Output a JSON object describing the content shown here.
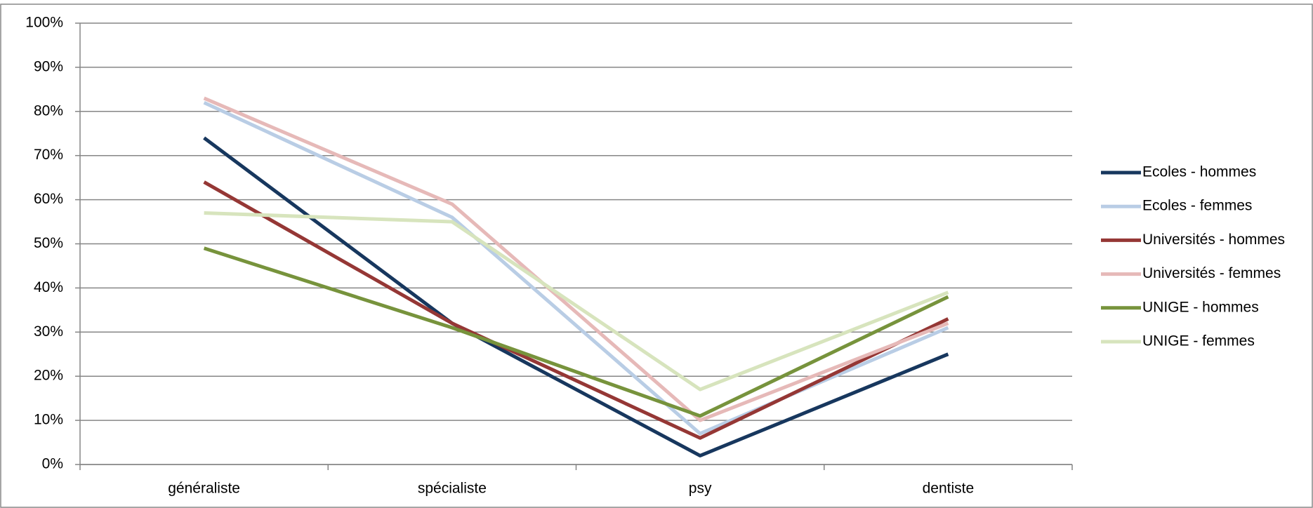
{
  "chart_data": {
    "type": "line",
    "categories": [
      "généraliste",
      "spécialiste",
      "psy",
      "dentiste"
    ],
    "series": [
      {
        "name": "Ecoles - hommes",
        "color": "#17375e",
        "values": [
          74,
          32,
          2,
          25
        ]
      },
      {
        "name": "Ecoles - femmes",
        "color": "#b9cde5",
        "values": [
          82,
          56,
          7,
          31
        ]
      },
      {
        "name": "Universités - hommes",
        "color": "#953735",
        "values": [
          64,
          32,
          6,
          33
        ]
      },
      {
        "name": "Universités - femmes",
        "color": "#e6b9b8",
        "values": [
          83,
          59,
          10,
          32
        ]
      },
      {
        "name": "UNIGE - hommes",
        "color": "#77933c",
        "values": [
          49,
          31,
          11,
          38
        ]
      },
      {
        "name": "UNIGE - femmes",
        "color": "#d7e4bd",
        "values": [
          57,
          55,
          17,
          39
        ]
      }
    ],
    "ylim": [
      0,
      100
    ],
    "yticks": [
      {
        "value": 0,
        "label": "0%"
      },
      {
        "value": 10,
        "label": "10%"
      },
      {
        "value": 20,
        "label": "20%"
      },
      {
        "value": 30,
        "label": "30%"
      },
      {
        "value": 40,
        "label": "40%"
      },
      {
        "value": 50,
        "label": "50%"
      },
      {
        "value": 60,
        "label": "60%"
      },
      {
        "value": 70,
        "label": "70%"
      },
      {
        "value": 80,
        "label": "80%"
      },
      {
        "value": 90,
        "label": "90%"
      },
      {
        "value": 100,
        "label": "100%"
      }
    ],
    "grid": true,
    "legend": "right"
  }
}
